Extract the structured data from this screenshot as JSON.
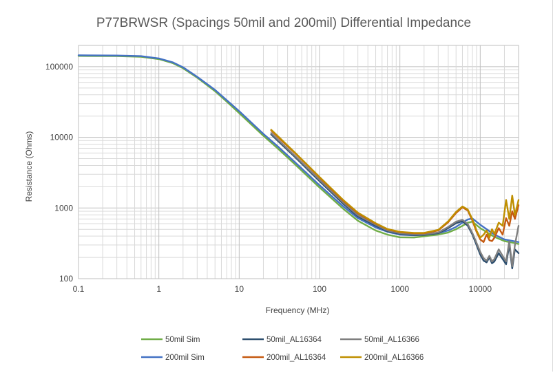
{
  "chart_data": {
    "type": "line",
    "title": "P77BRWSR (Spacings 50mil and 200mil) Differential Impedance",
    "xlabel": "Frequency (MHz)",
    "ylabel": "Resistance (Ohms)",
    "x_scale": "log",
    "y_scale": "log",
    "xlim": [
      0.1,
      30000
    ],
    "ylim": [
      100,
      200000
    ],
    "x_ticks": [
      0.1,
      1,
      10,
      100,
      1000,
      10000
    ],
    "x_tick_labels": [
      "0.1",
      "1",
      "10",
      "100",
      "1000",
      "10000"
    ],
    "y_ticks": [
      100,
      1000,
      10000,
      100000
    ],
    "y_tick_labels": [
      "100",
      "1000",
      "10000",
      "100000"
    ],
    "grid": true,
    "legend_position": "bottom",
    "series": [
      {
        "name": "50mil Sim",
        "color": "#70ad47",
        "x": [
          0.1,
          0.3,
          0.6,
          1,
          1.5,
          2,
          3,
          5,
          7,
          10,
          20,
          30,
          50,
          100,
          200,
          300,
          500,
          700,
          1000,
          1500,
          2000,
          3000,
          4000,
          5000,
          6000,
          7000,
          8000,
          10000,
          15000,
          20000,
          30000
        ],
        "y": [
          142000,
          141000,
          138000,
          128000,
          112000,
          95000,
          70000,
          45000,
          32000,
          22000,
          10500,
          7000,
          4100,
          1950,
          960,
          660,
          480,
          420,
          385,
          382,
          398,
          420,
          450,
          500,
          560,
          620,
          640,
          520,
          390,
          340,
          310
        ]
      },
      {
        "name": "200mil Sim",
        "color": "#4472c4",
        "x": [
          0.1,
          0.3,
          0.6,
          1,
          1.5,
          2,
          3,
          5,
          7,
          10,
          20,
          30,
          50,
          100,
          200,
          300,
          500,
          700,
          1000,
          1500,
          2000,
          3000,
          4000,
          5000,
          6000,
          7000,
          8000,
          10000,
          15000,
          20000,
          30000
        ],
        "y": [
          145000,
          144000,
          141000,
          131000,
          115000,
          98000,
          72000,
          47000,
          33500,
          23500,
          11200,
          7500,
          4400,
          2100,
          1040,
          720,
          530,
          460,
          420,
          410,
          420,
          440,
          480,
          540,
          620,
          690,
          710,
          580,
          420,
          360,
          330
        ]
      },
      {
        "name": "50mil_AL16364",
        "color": "#2e4f6f",
        "x": [
          25,
          30,
          50,
          100,
          200,
          300,
          500,
          700,
          1000,
          1500,
          2000,
          3000,
          4000,
          5000,
          6000,
          7000,
          8000,
          9000,
          10000,
          11000,
          12000,
          13000,
          14000,
          15000,
          17000,
          19000,
          21000,
          23000,
          25000,
          27000,
          30000
        ],
        "y": [
          11000,
          9000,
          5200,
          2400,
          1130,
          760,
          560,
          470,
          430,
          415,
          415,
          440,
          520,
          610,
          650,
          560,
          420,
          300,
          220,
          180,
          170,
          200,
          165,
          175,
          230,
          190,
          160,
          300,
          140,
          260,
          230
        ]
      },
      {
        "name": "50mil_AL16366",
        "color": "#7f7f7f",
        "x": [
          25,
          30,
          50,
          100,
          200,
          300,
          500,
          700,
          1000,
          1500,
          2000,
          3000,
          4000,
          5000,
          6000,
          7000,
          8000,
          9000,
          10000,
          11000,
          12000,
          13000,
          14000,
          15000,
          17000,
          19000,
          21000,
          23000,
          25000,
          27000,
          30000
        ],
        "y": [
          11500,
          9400,
          5400,
          2500,
          1180,
          790,
          580,
          480,
          440,
          425,
          425,
          450,
          540,
          640,
          680,
          590,
          440,
          320,
          240,
          195,
          180,
          210,
          175,
          190,
          260,
          210,
          175,
          340,
          150,
          300,
          560
        ]
      },
      {
        "name": "200mil_AL16364",
        "color": "#c55a11",
        "x": [
          25,
          30,
          50,
          100,
          200,
          300,
          500,
          700,
          1000,
          1500,
          2000,
          3000,
          4000,
          5000,
          6000,
          7000,
          8000,
          9000,
          10000,
          11000,
          12000,
          13000,
          14000,
          15000,
          17000,
          19000,
          21000,
          23000,
          25000,
          27000,
          30000
        ],
        "y": [
          12500,
          10200,
          5900,
          2700,
          1250,
          840,
          600,
          500,
          455,
          440,
          440,
          480,
          630,
          850,
          1020,
          920,
          660,
          460,
          360,
          330,
          420,
          350,
          340,
          380,
          520,
          420,
          720,
          560,
          900,
          700,
          1100
        ]
      },
      {
        "name": "200mil_AL16366",
        "color": "#bf8f00",
        "x": [
          25,
          30,
          50,
          100,
          200,
          300,
          500,
          700,
          1000,
          1500,
          2000,
          3000,
          4000,
          5000,
          6000,
          7000,
          8000,
          9000,
          10000,
          11000,
          12000,
          13000,
          14000,
          15000,
          17000,
          19000,
          21000,
          23000,
          25000,
          27000,
          30000
        ],
        "y": [
          12800,
          10500,
          6000,
          2750,
          1280,
          860,
          610,
          505,
          460,
          445,
          445,
          490,
          650,
          880,
          1050,
          950,
          690,
          480,
          380,
          420,
          480,
          380,
          500,
          430,
          620,
          560,
          1300,
          700,
          1500,
          800,
          1300
        ]
      }
    ]
  }
}
